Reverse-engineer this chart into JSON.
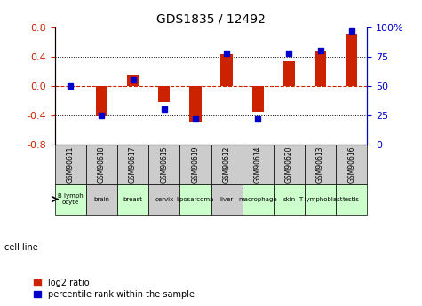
{
  "title": "GDS1835 / 12492",
  "gsm_labels": [
    "GSM90611",
    "GSM90618",
    "GSM90617",
    "GSM90615",
    "GSM90619",
    "GSM90612",
    "GSM90614",
    "GSM90620",
    "GSM90613",
    "GSM90616"
  ],
  "cell_labels": [
    "B lymph\nocyte",
    "brain",
    "breast",
    "cervix",
    "liposarcoma",
    "liver",
    "macrophage",
    "skin",
    "T lymphoblast",
    "testis"
  ],
  "log2_ratios": [
    0.0,
    -0.42,
    0.15,
    -0.22,
    -0.5,
    0.43,
    -0.35,
    0.34,
    0.49,
    0.72
  ],
  "percentile_ranks": [
    50,
    25,
    55,
    30,
    22,
    78,
    22,
    78,
    80,
    97
  ],
  "ylim_left": [
    -0.8,
    0.8
  ],
  "ylim_right": [
    0,
    100
  ],
  "yticks_left": [
    -0.8,
    -0.4,
    0.0,
    0.4,
    0.8
  ],
  "yticks_right": [
    0,
    25,
    50,
    75,
    100
  ],
  "bar_color": "#cc2200",
  "dot_color": "#0000cc",
  "cell_bg_colors": [
    "#ccffcc",
    "#cccccc",
    "#ccffcc",
    "#cccccc",
    "#ccffcc",
    "#cccccc",
    "#ccffcc",
    "#ccffcc",
    "#ccffcc",
    "#ccffcc"
  ],
  "gsm_bg_color": "#cccccc",
  "legend_bar_label": "log2 ratio",
  "legend_dot_label": "percentile rank within the sample",
  "cell_line_label": "cell line"
}
